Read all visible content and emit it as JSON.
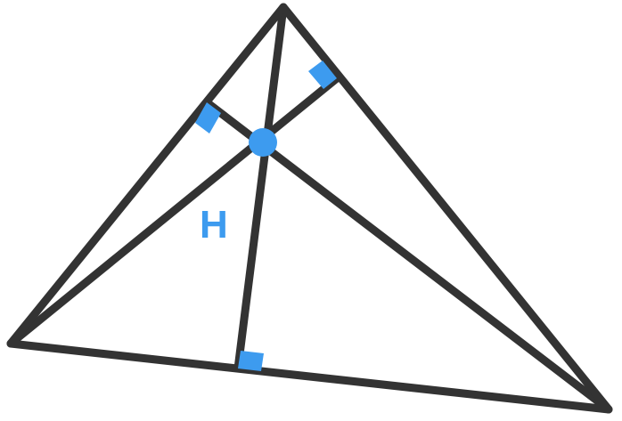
{
  "diagram": {
    "point_label": "H",
    "colors": {
      "line": "#333333",
      "accent": "#3d9bef",
      "background": "#ffffff"
    }
  }
}
